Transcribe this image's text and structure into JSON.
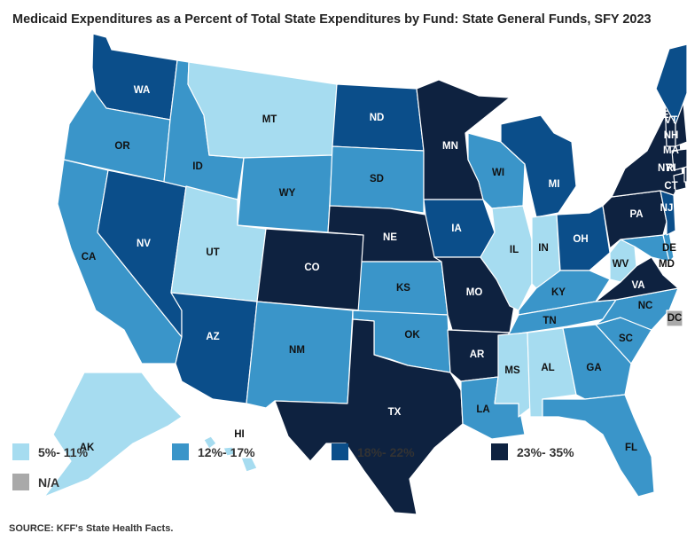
{
  "title": "Medicaid Expenditures as a Percent of Total State Expenditures by Fund: State General Funds, SFY 2023",
  "source": "SOURCE: KFF's State Health Facts.",
  "legend": [
    {
      "label": "5%- 11%",
      "color": "#a6dcf0"
    },
    {
      "label": "12%- 17%",
      "color": "#3a95c9"
    },
    {
      "label": "18%- 22%",
      "color": "#0b4e8a"
    },
    {
      "label": "23%- 35%",
      "color": "#0e2240"
    },
    {
      "label": "N/A",
      "color": "#a9a9a9"
    }
  ],
  "states": {
    "WA": "18%- 22%",
    "OR": "12%- 17%",
    "CA": "12%- 17%",
    "NV": "18%- 22%",
    "ID": "12%- 17%",
    "MT": "5%- 11%",
    "WY": "12%- 17%",
    "UT": "5%- 11%",
    "AZ": "18%- 22%",
    "CO": "23%- 35%",
    "NM": "12%- 17%",
    "ND": "18%- 22%",
    "SD": "12%- 17%",
    "NE": "23%- 35%",
    "KS": "12%- 17%",
    "OK": "12%- 17%",
    "TX": "23%- 35%",
    "MN": "23%- 35%",
    "IA": "18%- 22%",
    "MO": "23%- 35%",
    "AR": "23%- 35%",
    "LA": "12%- 17%",
    "WI": "12%- 17%",
    "IL": "5%- 11%",
    "MI": "18%- 22%",
    "IN": "5%- 11%",
    "OH": "18%- 22%",
    "KY": "12%- 17%",
    "TN": "12%- 17%",
    "MS": "5%- 11%",
    "AL": "5%- 11%",
    "GA": "12%- 17%",
    "FL": "12%- 17%",
    "SC": "12%- 17%",
    "NC": "12%- 17%",
    "VA": "23%- 35%",
    "WV": "5%- 11%",
    "PA": "23%- 35%",
    "NY": "23%- 35%",
    "NJ": "18%- 22%",
    "DE": "12%- 17%",
    "MD": "12%- 17%",
    "DC": "N/A",
    "CT": "23%- 35%",
    "RI": "23%- 35%",
    "MA": "23%- 35%",
    "VT": "23%- 35%",
    "NH": "23%- 35%",
    "ME": "18%- 22%",
    "AK": "5%- 11%",
    "HI": "5%- 11%"
  }
}
